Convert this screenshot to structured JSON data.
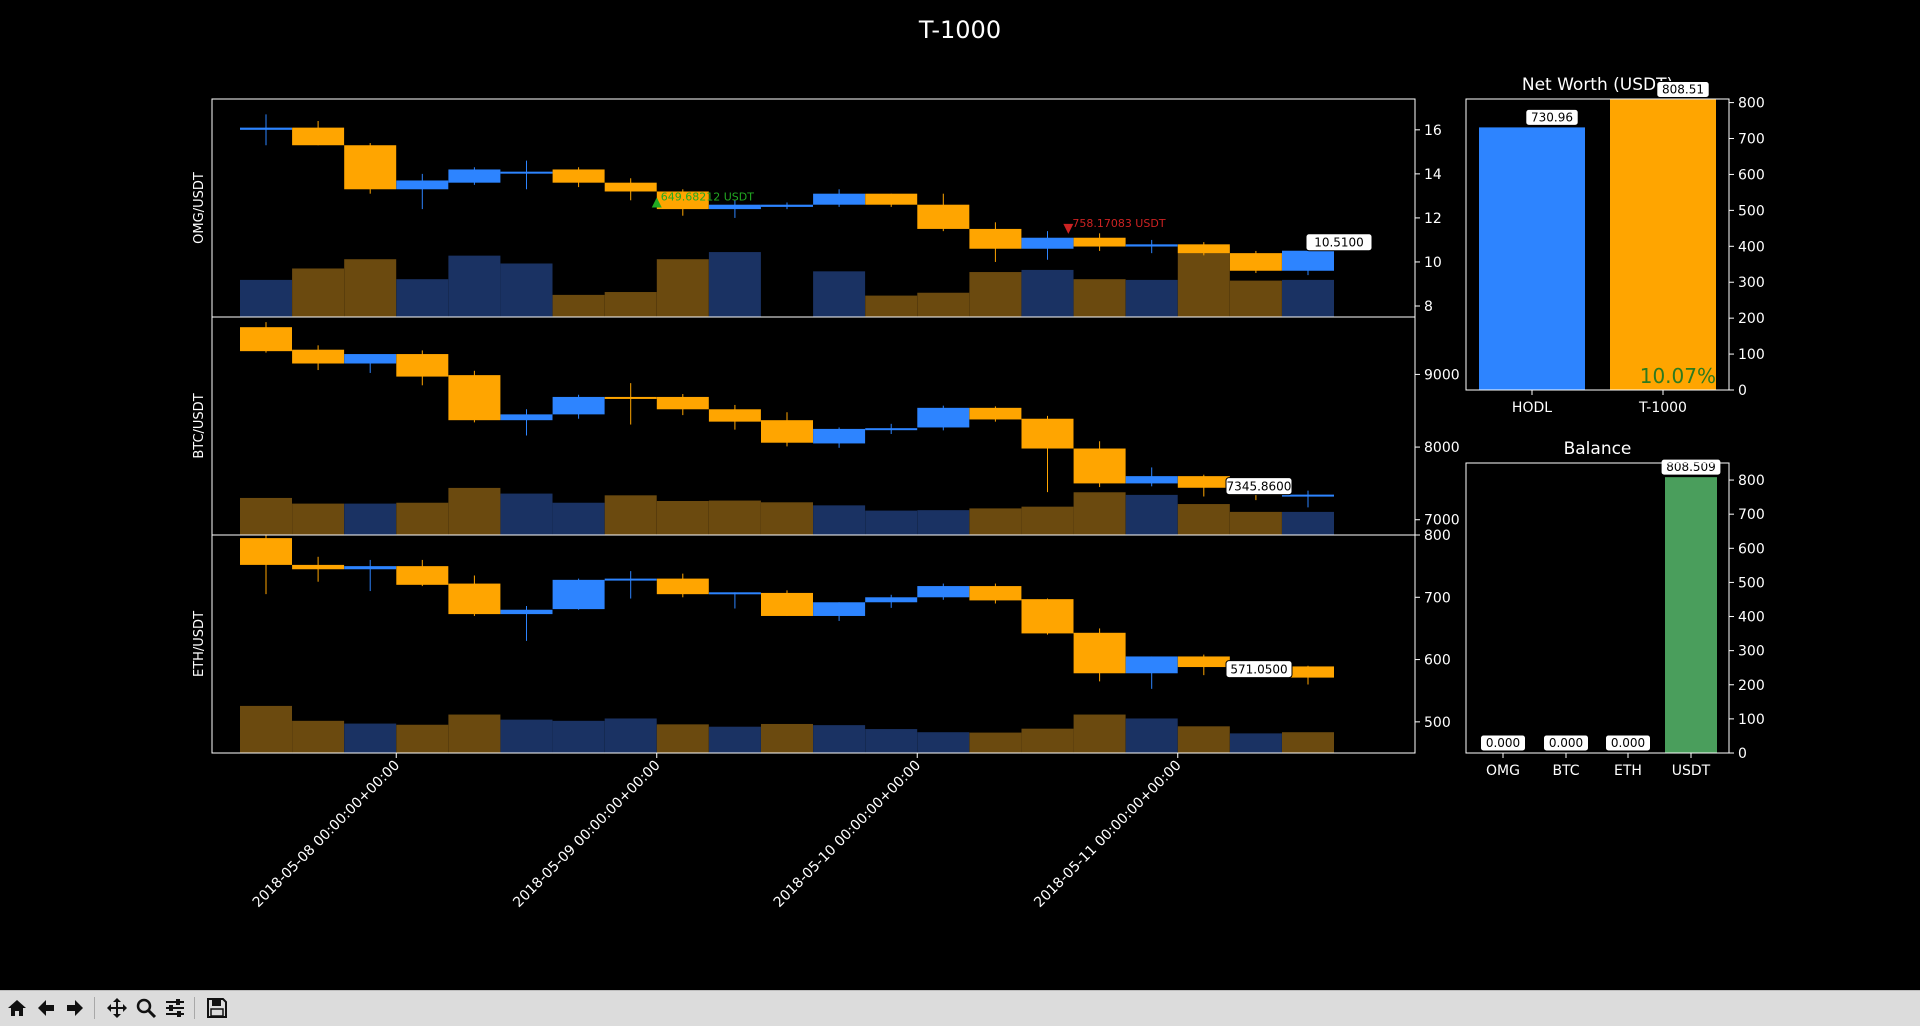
{
  "title": "T-1000",
  "colors": {
    "up": "#2d84ff",
    "down": "#ffa500",
    "vol_up": "#1a3263",
    "vol_down": "#6b4a0f",
    "green": "#4a9e5c",
    "buy": "#22aa22",
    "sell": "#cc2222",
    "pct": "#2d7a1f"
  },
  "chart_data": [
    {
      "type": "candlestick",
      "id": "omg",
      "ylabel": "OMG/USDT",
      "ylim": [
        7.5,
        17.4
      ],
      "yticks": [
        8,
        10,
        12,
        14,
        16
      ],
      "vol_max": 11000,
      "x_ticks": [
        "2018-05-08 00:00:00+00:00",
        "2018-05-09 00:00:00+00:00",
        "2018-05-10 00:00:00+00:00",
        "2018-05-11 00:00:00+00:00"
      ],
      "candles": [
        {
          "o": 16.0,
          "h": 16.7,
          "l": 15.3,
          "c": 16.1,
          "v": 5200
        },
        {
          "o": 16.1,
          "h": 16.4,
          "l": 15.3,
          "c": 15.3,
          "v": 6800
        },
        {
          "o": 15.3,
          "h": 15.4,
          "l": 13.1,
          "c": 13.3,
          "v": 8100
        },
        {
          "o": 13.3,
          "h": 14.0,
          "l": 12.4,
          "c": 13.7,
          "v": 5300
        },
        {
          "o": 13.6,
          "h": 14.3,
          "l": 13.5,
          "c": 14.2,
          "v": 8600
        },
        {
          "o": 14.1,
          "h": 14.6,
          "l": 13.3,
          "c": 14.1,
          "v": 7500
        },
        {
          "o": 14.2,
          "h": 14.3,
          "l": 13.4,
          "c": 13.6,
          "v": 3100
        },
        {
          "o": 13.6,
          "h": 13.8,
          "l": 12.8,
          "c": 13.2,
          "v": 3500
        },
        {
          "o": 13.2,
          "h": 13.3,
          "l": 12.1,
          "c": 12.4,
          "v": 8100
        },
        {
          "o": 12.4,
          "h": 12.8,
          "l": 12.0,
          "c": 12.6,
          "v": 9100
        },
        {
          "o": 12.5,
          "h": 12.7,
          "l": 12.4,
          "c": 12.6,
          "v": 0
        },
        {
          "o": 12.6,
          "h": 13.3,
          "l": 12.5,
          "c": 13.1,
          "v": 6400
        },
        {
          "o": 13.1,
          "h": 13.1,
          "l": 12.5,
          "c": 12.6,
          "v": 3000
        },
        {
          "o": 12.6,
          "h": 13.1,
          "l": 11.4,
          "c": 11.5,
          "v": 3400
        },
        {
          "o": 11.5,
          "h": 11.8,
          "l": 10.0,
          "c": 10.6,
          "v": 6300
        },
        {
          "o": 10.6,
          "h": 11.4,
          "l": 10.1,
          "c": 11.1,
          "v": 6600
        },
        {
          "o": 11.1,
          "h": 11.3,
          "l": 10.5,
          "c": 10.7,
          "v": 5300
        },
        {
          "o": 10.7,
          "h": 11.0,
          "l": 10.4,
          "c": 10.8,
          "v": 5200
        },
        {
          "o": 10.8,
          "h": 10.9,
          "l": 10.3,
          "c": 10.4,
          "v": 9900
        },
        {
          "o": 10.4,
          "h": 10.5,
          "l": 9.5,
          "c": 9.6,
          "v": 5100
        },
        {
          "o": 9.6,
          "h": 10.6,
          "l": 9.4,
          "c": 10.51,
          "v": 5200
        }
      ],
      "last_label": "10.5100",
      "trades": [
        {
          "type": "buy",
          "index": 7.5,
          "price": 12.7,
          "label": "649.68212 USDT"
        },
        {
          "type": "sell",
          "index": 15.4,
          "price": 11.5,
          "label": "758.17083 USDT"
        }
      ]
    },
    {
      "type": "candlestick",
      "id": "btc",
      "ylabel": "BTC/USDT",
      "ylim": [
        6790,
        9790
      ],
      "yticks": [
        7000,
        8000,
        9000
      ],
      "vol_max": 1800,
      "candles": [
        {
          "o": 9650,
          "h": 9720,
          "l": 9300,
          "c": 9320,
          "v": 850
        },
        {
          "o": 9340,
          "h": 9400,
          "l": 9060,
          "c": 9150,
          "v": 720
        },
        {
          "o": 9150,
          "h": 9260,
          "l": 9020,
          "c": 9280,
          "v": 720
        },
        {
          "o": 9280,
          "h": 9330,
          "l": 8850,
          "c": 8970,
          "v": 740
        },
        {
          "o": 8990,
          "h": 9050,
          "l": 8340,
          "c": 8370,
          "v": 1080
        },
        {
          "o": 8370,
          "h": 8520,
          "l": 8160,
          "c": 8450,
          "v": 950
        },
        {
          "o": 8450,
          "h": 8720,
          "l": 8390,
          "c": 8690,
          "v": 740
        },
        {
          "o": 8690,
          "h": 8880,
          "l": 8310,
          "c": 8680,
          "v": 910
        },
        {
          "o": 8690,
          "h": 8730,
          "l": 8440,
          "c": 8520,
          "v": 780
        },
        {
          "o": 8520,
          "h": 8580,
          "l": 8240,
          "c": 8350,
          "v": 790
        },
        {
          "o": 8370,
          "h": 8480,
          "l": 8010,
          "c": 8060,
          "v": 750
        },
        {
          "o": 8050,
          "h": 8270,
          "l": 7990,
          "c": 8250,
          "v": 680
        },
        {
          "o": 8240,
          "h": 8320,
          "l": 8180,
          "c": 8260,
          "v": 560
        },
        {
          "o": 8270,
          "h": 8570,
          "l": 8230,
          "c": 8540,
          "v": 570
        },
        {
          "o": 8540,
          "h": 8560,
          "l": 8350,
          "c": 8380,
          "v": 610
        },
        {
          "o": 8390,
          "h": 8430,
          "l": 7380,
          "c": 7980,
          "v": 650
        },
        {
          "o": 7980,
          "h": 8080,
          "l": 7450,
          "c": 7500,
          "v": 980
        },
        {
          "o": 7500,
          "h": 7720,
          "l": 7460,
          "c": 7600,
          "v": 920
        },
        {
          "o": 7600,
          "h": 7620,
          "l": 7320,
          "c": 7440,
          "v": 710
        },
        {
          "o": 7440,
          "h": 7480,
          "l": 7270,
          "c": 7340,
          "v": 530
        },
        {
          "o": 7340,
          "h": 7400,
          "l": 7170,
          "c": 7345.86,
          "v": 530
        }
      ],
      "last_label": "7345.8600"
    },
    {
      "type": "candlestick",
      "id": "eth",
      "ylabel": "ETH/USDT",
      "ylim": [
        450,
        800
      ],
      "yticks": [
        500,
        600,
        700,
        800
      ],
      "vol_max": 200,
      "candles": [
        {
          "o": 795,
          "h": 800,
          "l": 705,
          "c": 752,
          "v": 120
        },
        {
          "o": 752,
          "h": 765,
          "l": 725,
          "c": 745,
          "v": 82
        },
        {
          "o": 745,
          "h": 760,
          "l": 710,
          "c": 750,
          "v": 75
        },
        {
          "o": 750,
          "h": 760,
          "l": 718,
          "c": 720,
          "v": 72
        },
        {
          "o": 722,
          "h": 735,
          "l": 670,
          "c": 673,
          "v": 98
        },
        {
          "o": 673,
          "h": 686,
          "l": 630,
          "c": 680,
          "v": 85
        },
        {
          "o": 681,
          "h": 730,
          "l": 680,
          "c": 728,
          "v": 82
        },
        {
          "o": 728,
          "h": 742,
          "l": 698,
          "c": 730,
          "v": 88
        },
        {
          "o": 730,
          "h": 738,
          "l": 700,
          "c": 705,
          "v": 73
        },
        {
          "o": 705,
          "h": 708,
          "l": 682,
          "c": 708,
          "v": 67
        },
        {
          "o": 707,
          "h": 711,
          "l": 670,
          "c": 670,
          "v": 74
        },
        {
          "o": 670,
          "h": 692,
          "l": 662,
          "c": 692,
          "v": 71
        },
        {
          "o": 692,
          "h": 704,
          "l": 683,
          "c": 700,
          "v": 61
        },
        {
          "o": 700,
          "h": 722,
          "l": 696,
          "c": 718,
          "v": 53
        },
        {
          "o": 718,
          "h": 722,
          "l": 690,
          "c": 695,
          "v": 52
        },
        {
          "o": 697,
          "h": 698,
          "l": 640,
          "c": 642,
          "v": 62
        },
        {
          "o": 643,
          "h": 650,
          "l": 565,
          "c": 578,
          "v": 98
        },
        {
          "o": 578,
          "h": 605,
          "l": 553,
          "c": 605,
          "v": 88
        },
        {
          "o": 605,
          "h": 608,
          "l": 575,
          "c": 588,
          "v": 68
        },
        {
          "o": 589,
          "h": 591,
          "l": 583,
          "c": 591,
          "v": 50
        },
        {
          "o": 589,
          "h": 590,
          "l": 560,
          "c": 571.05,
          "v": 53
        }
      ],
      "last_label": "571.0500"
    },
    {
      "type": "bar",
      "id": "networth",
      "title": "Net Worth (USDT)",
      "categories": [
        "HODL",
        "T-1000"
      ],
      "values": [
        730.96,
        808.51
      ],
      "value_labels": [
        "730.96",
        "808.51"
      ],
      "ylim": [
        0,
        810
      ],
      "yticks": [
        0,
        100,
        200,
        300,
        400,
        500,
        600,
        700,
        800
      ],
      "annotation": "10.07%"
    },
    {
      "type": "bar",
      "id": "balance",
      "title": "Balance",
      "categories": [
        "OMG",
        "BTC",
        "ETH",
        "USDT"
      ],
      "values": [
        0.0,
        0.0,
        0.0,
        808.509
      ],
      "value_labels": [
        "0.000",
        "0.000",
        "0.000",
        "808.509"
      ],
      "ylim": [
        0,
        850
      ],
      "yticks": [
        0,
        100,
        200,
        300,
        400,
        500,
        600,
        700,
        800
      ]
    }
  ],
  "toolbar": [
    {
      "name": "home-button",
      "icon": "home-icon"
    },
    {
      "name": "back-button",
      "icon": "arrow-left-icon"
    },
    {
      "name": "forward-button",
      "icon": "arrow-right-icon"
    },
    {
      "name": "pan-button",
      "icon": "move-icon"
    },
    {
      "name": "zoom-button",
      "icon": "zoom-icon"
    },
    {
      "name": "configure-subplots-button",
      "icon": "sliders-icon"
    },
    {
      "name": "save-button",
      "icon": "save-icon"
    }
  ]
}
